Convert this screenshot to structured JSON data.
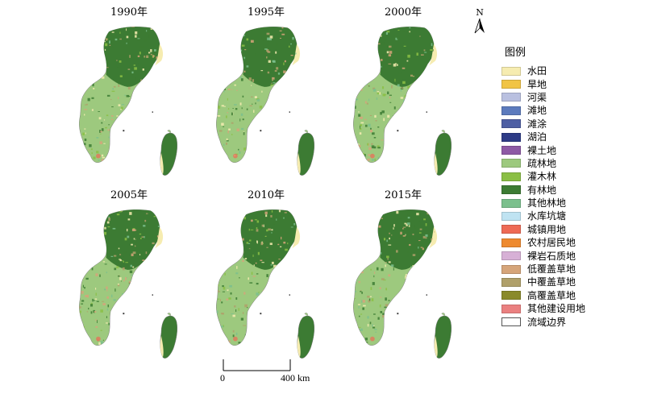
{
  "panels": [
    {
      "year": "1990年"
    },
    {
      "year": "1995年"
    },
    {
      "year": "2000年"
    },
    {
      "year": "2005年"
    },
    {
      "year": "2010年"
    },
    {
      "year": "2015年"
    }
  ],
  "north": {
    "label": "N"
  },
  "scale": {
    "start": "0",
    "end": "400 km"
  },
  "legend": {
    "title": "图例",
    "items": [
      {
        "label": "水田",
        "color": "#f6ecb0"
      },
      {
        "label": "旱地",
        "color": "#f1c445"
      },
      {
        "label": "河渠",
        "color": "#b9c0e0"
      },
      {
        "label": "滩地",
        "color": "#5c7bbd"
      },
      {
        "label": "滩涂",
        "color": "#4e5fa4"
      },
      {
        "label": "湖泊",
        "color": "#2d3b86"
      },
      {
        "label": "裸土地",
        "color": "#8e5aa5"
      },
      {
        "label": "疏林地",
        "color": "#9dc97e"
      },
      {
        "label": "灌木林",
        "color": "#8bbf45"
      },
      {
        "label": "有林地",
        "color": "#3c7b33"
      },
      {
        "label": "其他林地",
        "color": "#7bc08d"
      },
      {
        "label": "水库坑塘",
        "color": "#bfe3f2"
      },
      {
        "label": "城镇用地",
        "color": "#ee6a55"
      },
      {
        "label": "农村居民地",
        "color": "#ee8a2f"
      },
      {
        "label": "裸岩石质地",
        "color": "#d7b0d6"
      },
      {
        "label": "低覆盖草地",
        "color": "#d6a57a"
      },
      {
        "label": "中覆盖草地",
        "color": "#b0a06a"
      },
      {
        "label": "高覆盖草地",
        "color": "#8a8a2a"
      },
      {
        "label": "其他建设用地",
        "color": "#ea8080"
      },
      {
        "label": "流域边界",
        "color": "#ffffff"
      }
    ]
  }
}
